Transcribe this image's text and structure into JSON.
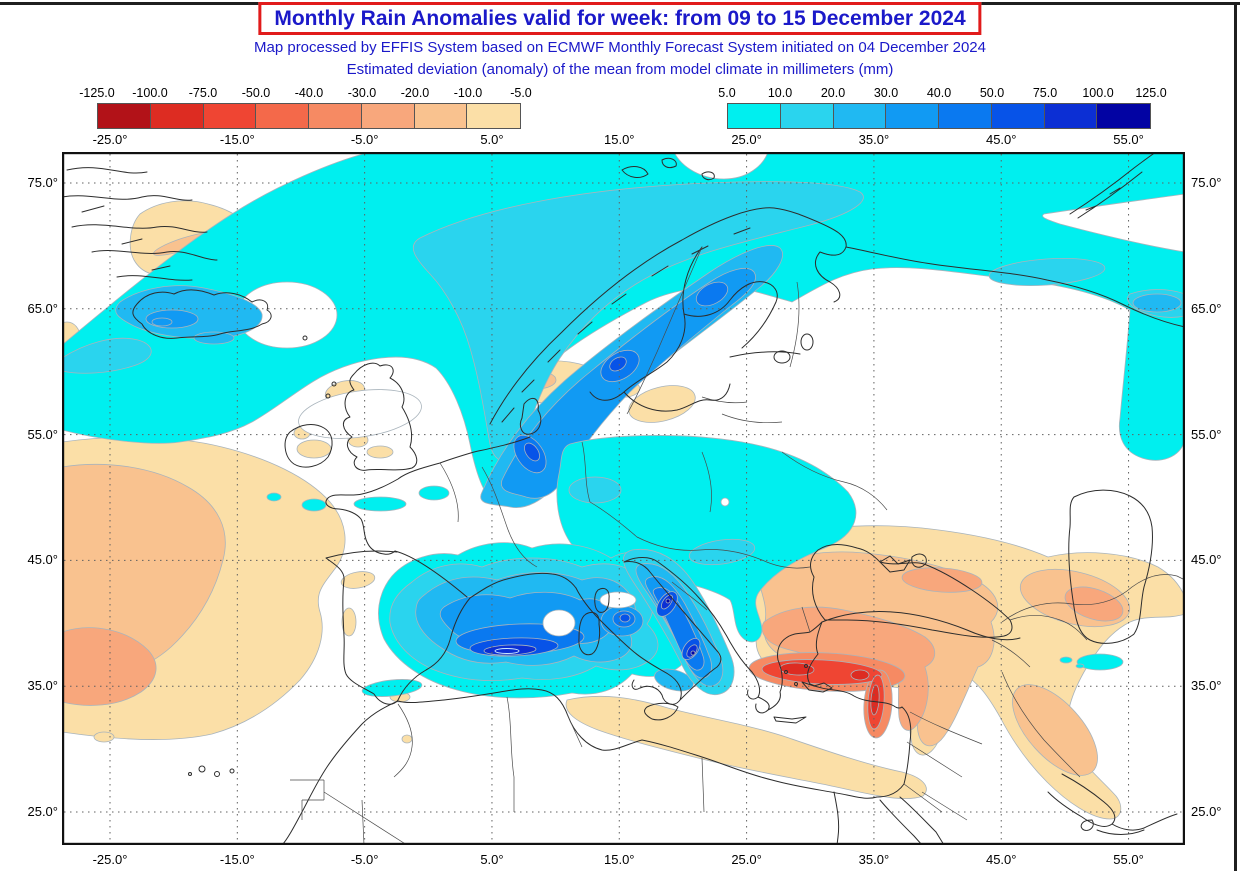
{
  "header": {
    "title": "Monthly Rain Anomalies valid for week: from 09 to 15 December 2024",
    "subtitle1": "Map processed by EFFIS System based on ECMWF Monthly Forecast System initiated on 04 December 2024",
    "subtitle2": "Estimated deviation (anomaly) of the mean from model climate in millimeters (mm)"
  },
  "legends": {
    "negative": {
      "name": "negative-anomaly-scale-mm",
      "ticks": [
        "-125.0",
        "-100.0",
        "-75.0",
        "-50.0",
        "-40.0",
        "-30.0",
        "-20.0",
        "-10.0",
        "-5.0"
      ],
      "colors": [
        "#b21218",
        "#dd2c22",
        "#ef4533",
        "#f4694a",
        "#f68a63",
        "#f8a77c",
        "#f9c28f",
        "#fbdfa7"
      ]
    },
    "positive": {
      "name": "positive-anomaly-scale-mm",
      "ticks": [
        "5.0",
        "10.0",
        "20.0",
        "30.0",
        "40.0",
        "50.0",
        "75.0",
        "100.0",
        "125.0"
      ],
      "colors": [
        "#00efef",
        "#2ad4ee",
        "#20b9f2",
        "#119af3",
        "#0a79f0",
        "#0753e8",
        "#0c2fd4",
        "#0203a3"
      ]
    }
  },
  "map_axes": {
    "lon_ticks": [
      "-25.0°",
      "-15.0°",
      "-5.0°",
      "5.0°",
      "15.0°",
      "25.0°",
      "35.0°",
      "45.0°",
      "55.0°"
    ],
    "lat_ticks": [
      "75.0°",
      "65.0°",
      "55.0°",
      "45.0°",
      "35.0°",
      "25.0°"
    ]
  },
  "colors": {
    "title_text": "#1b19c9",
    "title_box_border": "#e11b1b",
    "grid_line": "#606060",
    "coastline": "#2d2d2d",
    "contour_line": "#a9b4bc",
    "frame_line": "#1f1f1f"
  }
}
